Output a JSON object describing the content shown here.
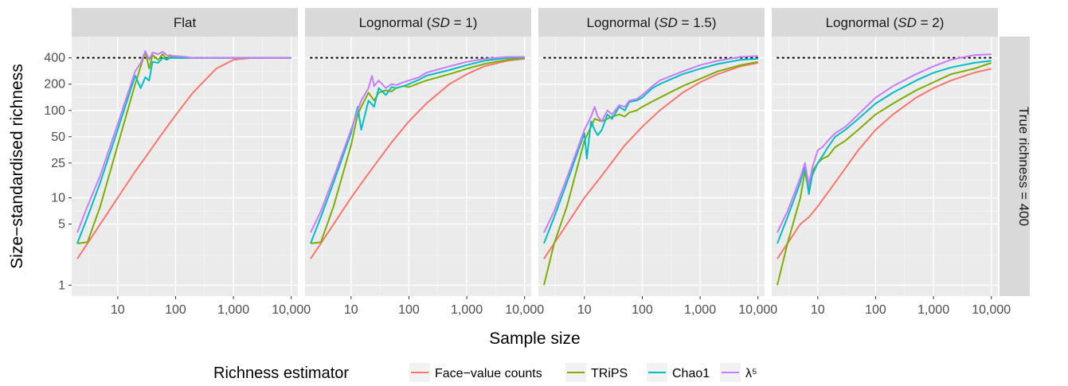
{
  "chart_data": {
    "type": "line",
    "xlabel": "Sample size",
    "ylabel": "Size−standardised richness",
    "x_scale": "log",
    "y_scale": "log",
    "xlim": [
      1.6,
      13000
    ],
    "ylim": [
      0.75,
      700
    ],
    "x_ticks": [
      10,
      100,
      1000,
      10000
    ],
    "x_tick_labels": [
      "10",
      "100",
      "1,000",
      "10,000"
    ],
    "y_ticks": [
      1,
      5,
      10,
      25,
      50,
      100,
      200,
      400
    ],
    "y_tick_labels": [
      "1",
      "5",
      "10",
      "25",
      "50",
      "100",
      "200",
      "400"
    ],
    "grid": true,
    "reference_line": {
      "y": 400,
      "style": "dotted"
    },
    "row_strip": "True richness = 400",
    "legend": {
      "title": "Richness estimator",
      "position": "bottom",
      "items": [
        "Face−value counts",
        "TRiPS",
        "Chao1",
        "λ⁵"
      ]
    },
    "series_colors": {
      "Face−value counts": "#F8766D",
      "TRiPS": "#7CAE00",
      "Chao1": "#00BFC4",
      "λ⁵": "#C77CFF"
    },
    "panels": [
      {
        "title": "Flat",
        "series": [
          {
            "name": "Face−value counts",
            "x": [
              2,
              3,
              5,
              10,
              20,
              30,
              50,
              100,
              200,
              500,
              1000,
              2000,
              5000,
              10000
            ],
            "y": [
              2,
              3,
              5,
              10,
              20,
              29,
              47,
              88,
              160,
              300,
              380,
              398,
              400,
              400
            ]
          },
          {
            "name": "TRiPS",
            "x": [
              2,
              3,
              5,
              10,
              20,
              25,
              30,
              35,
              40,
              50,
              60,
              70,
              80,
              100,
              150,
              200,
              500,
              1000,
              10000
            ],
            "y": [
              3,
              3.1,
              8,
              40,
              200,
              320,
              470,
              300,
              430,
              380,
              440,
              380,
              430,
              400,
              400,
              400,
              400,
              400,
              400
            ]
          },
          {
            "name": "Chao1",
            "x": [
              2,
              3,
              5,
              10,
              20,
              25,
              30,
              35,
              40,
              50,
              60,
              70,
              80,
              100,
              150,
              200,
              500,
              1000,
              10000
            ],
            "y": [
              3,
              6,
              15,
              60,
              250,
              180,
              240,
              220,
              360,
              350,
              400,
              380,
              400,
              400,
              400,
              400,
              400,
              400,
              400
            ]
          },
          {
            "name": "λ⁵",
            "x": [
              2,
              3,
              5,
              10,
              20,
              25,
              30,
              35,
              40,
              50,
              60,
              70,
              80,
              100,
              150,
              200,
              500,
              1000,
              10000
            ],
            "y": [
              4,
              8,
              18,
              70,
              280,
              350,
              480,
              380,
              460,
              440,
              470,
              430,
              420,
              420,
              410,
              400,
              400,
              400,
              400
            ]
          }
        ]
      },
      {
        "title": "Lognormal (SD = 1)",
        "series": [
          {
            "name": "Face−value counts",
            "x": [
              2,
              5,
              10,
              20,
              50,
              100,
              200,
              500,
              1000,
              2000,
              5000,
              10000
            ],
            "y": [
              2,
              5,
              10,
              19,
              43,
              75,
              120,
              200,
              260,
              320,
              370,
              390
            ]
          },
          {
            "name": "TRiPS",
            "x": [
              2,
              3,
              5,
              10,
              13,
              15,
              20,
              25,
              30,
              40,
              50,
              60,
              80,
              100,
              150,
              200,
              500,
              1000,
              2000,
              5000,
              10000
            ],
            "y": [
              3,
              3.1,
              8,
              40,
              90,
              110,
              160,
              130,
              160,
              170,
              165,
              180,
              190,
              185,
              205,
              220,
              260,
              300,
              340,
              380,
              400
            ]
          },
          {
            "name": "Chao1",
            "x": [
              2,
              3,
              5,
              10,
              13,
              15,
              20,
              25,
              30,
              40,
              50,
              60,
              80,
              100,
              150,
              200,
              500,
              1000,
              2000,
              5000,
              10000
            ],
            "y": [
              3,
              6,
              15,
              55,
              110,
              60,
              130,
              110,
              180,
              150,
              185,
              180,
              190,
              200,
              225,
              250,
              290,
              330,
              370,
              400,
              405
            ]
          },
          {
            "name": "λ⁵",
            "x": [
              2,
              3,
              5,
              10,
              13,
              15,
              20,
              23,
              25,
              30,
              40,
              50,
              60,
              80,
              100,
              150,
              200,
              500,
              1000,
              2000,
              5000,
              10000
            ],
            "y": [
              4,
              7,
              17,
              60,
              100,
              130,
              180,
              250,
              190,
              220,
              180,
              200,
              195,
              210,
              220,
              240,
              270,
              320,
              360,
              390,
              410,
              410
            ]
          }
        ]
      },
      {
        "title": "Lognormal (SD = 1.5)",
        "series": [
          {
            "name": "Face−value counts",
            "x": [
              2,
              5,
              10,
              20,
              50,
              100,
              200,
              500,
              1000,
              2000,
              5000,
              10000
            ],
            "y": [
              2,
              5,
              10,
              18,
              40,
              65,
              100,
              160,
              210,
              260,
              320,
              350
            ]
          },
          {
            "name": "TRiPS",
            "x": [
              2,
              3,
              5,
              10,
              15,
              20,
              30,
              40,
              50,
              60,
              80,
              100,
              200,
              500,
              1000,
              2000,
              5000,
              10000
            ],
            "y": [
              1,
              3,
              8,
              45,
              80,
              75,
              85,
              90,
              85,
              95,
              100,
              110,
              140,
              190,
              230,
              280,
              330,
              360
            ]
          },
          {
            "name": "Chao1",
            "x": [
              2,
              3,
              5,
              10,
              11,
              13,
              15,
              17,
              20,
              25,
              30,
              40,
              50,
              60,
              80,
              100,
              150,
              200,
              500,
              1000,
              2000,
              5000,
              10000
            ],
            "y": [
              3,
              6,
              15,
              55,
              28,
              75,
              60,
              52,
              60,
              90,
              80,
              110,
              100,
              125,
              130,
              140,
              180,
              200,
              260,
              300,
              340,
              380,
              390
            ]
          },
          {
            "name": "λ⁵",
            "x": [
              2,
              3,
              5,
              10,
              13,
              15,
              17,
              20,
              25,
              30,
              40,
              50,
              60,
              80,
              100,
              150,
              200,
              500,
              1000,
              2000,
              5000,
              10000
            ],
            "y": [
              4,
              7,
              17,
              60,
              85,
              110,
              85,
              75,
              100,
              90,
              115,
              110,
              130,
              135,
              150,
              190,
              220,
              280,
              330,
              370,
              410,
              420
            ]
          }
        ]
      },
      {
        "title": "Lognormal (SD = 2)",
        "series": [
          {
            "name": "Face−value counts",
            "x": [
              2,
              5,
              7,
              10,
              20,
              50,
              100,
              200,
              500,
              1000,
              2000,
              5000,
              10000
            ],
            "y": [
              2,
              5,
              6,
              8,
              15,
              35,
              60,
              90,
              140,
              180,
              220,
              270,
              300
            ]
          },
          {
            "name": "TRiPS",
            "x": [
              2,
              3,
              5,
              6,
              7,
              8,
              10,
              12,
              15,
              20,
              30,
              50,
              100,
              200,
              500,
              1000,
              2000,
              5000,
              10000
            ],
            "y": [
              1,
              3,
              10,
              20,
              12,
              20,
              25,
              28,
              30,
              38,
              45,
              60,
              90,
              120,
              170,
              210,
              260,
              300,
              350
            ]
          },
          {
            "name": "Chao1",
            "x": [
              2,
              3,
              5,
              6,
              7,
              8,
              10,
              12,
              15,
              20,
              30,
              50,
              100,
              200,
              500,
              1000,
              2000,
              5000,
              10000
            ],
            "y": [
              3,
              6,
              15,
              23,
              11,
              18,
              25,
              30,
              38,
              50,
              60,
              80,
              120,
              160,
              220,
              270,
              310,
              350,
              370
            ]
          },
          {
            "name": "λ⁵",
            "x": [
              2,
              3,
              5,
              6,
              7,
              8,
              10,
              12,
              15,
              20,
              30,
              50,
              100,
              200,
              500,
              1000,
              2000,
              5000,
              10000
            ],
            "y": [
              4,
              7,
              17,
              25,
              14,
              22,
              35,
              38,
              45,
              55,
              65,
              90,
              140,
              190,
              260,
              320,
              380,
              430,
              440
            ]
          }
        ]
      }
    ]
  }
}
